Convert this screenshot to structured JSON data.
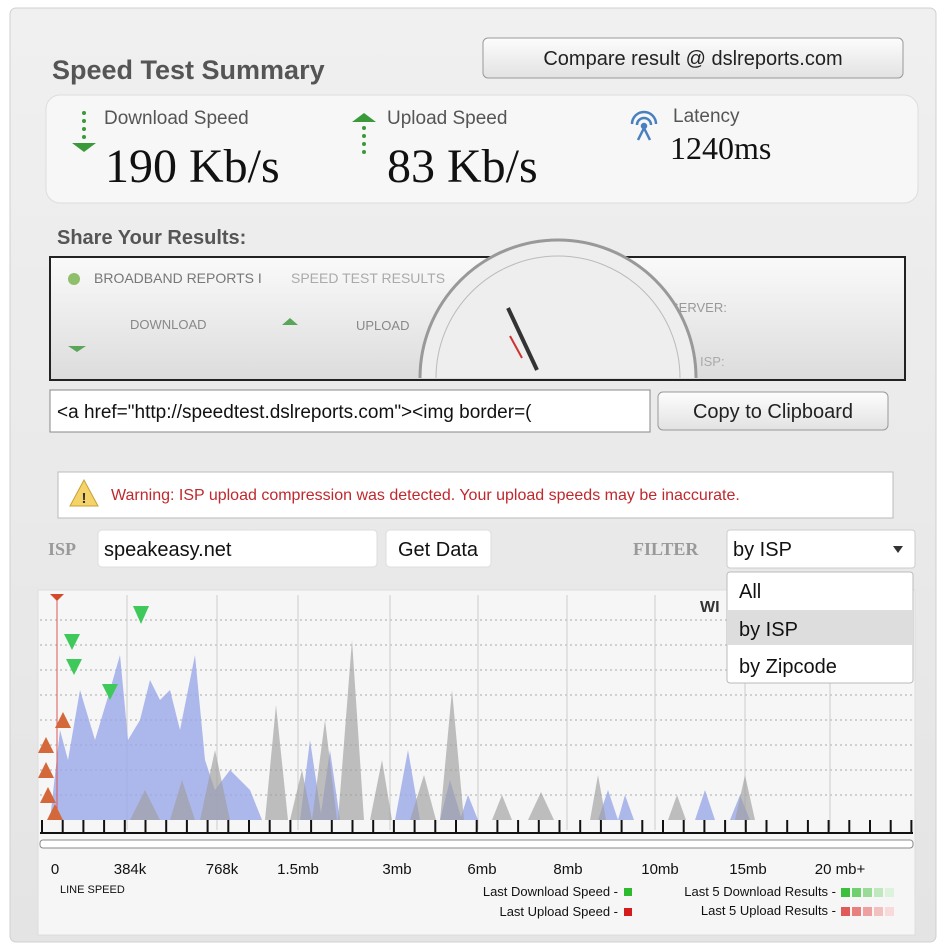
{
  "header": {
    "title": "Speed Test Summary",
    "compare_button": "Compare result @ dslreports.com"
  },
  "results": {
    "download_label": "Download Speed",
    "download_value": "190 Kb/s",
    "upload_label": "Upload Speed",
    "upload_value": "83 Kb/s",
    "latency_label": "Latency",
    "latency_value": "1240ms"
  },
  "share": {
    "title": "Share Your Results:",
    "banner_brand": "BROADBAND REPORTS I",
    "banner_subtitle": "SPEED TEST RESULTS",
    "banner_download": "DOWNLOAD",
    "banner_upload": "UPLOAD",
    "banner_server": "SERVER:",
    "banner_isp": "ISP:",
    "embed_code": "<a href=\"http://speedtest.dslreports.com\"><img border=(",
    "copy_button": "Copy to Clipboard"
  },
  "warning": "Warning: ISP upload compression was detected. Your upload speeds may be inaccurate.",
  "isp": {
    "label": "ISP",
    "value": "speakeasy.net",
    "button": "Get Data"
  },
  "filter": {
    "label": "FILTER",
    "selected": "by ISP",
    "options": [
      "All",
      "by ISP",
      "by Zipcode"
    ]
  },
  "graph": {
    "partial_label": "WI",
    "x_labels": [
      "0",
      "384k",
      "768k",
      "1.5mb",
      "3mb",
      "6mb",
      "8mb",
      "10mb",
      "15mb",
      "20 mb+"
    ],
    "x_title": "LINE SPEED",
    "legend": [
      "Last Download Speed -",
      "Last Upload Speed -",
      "Last 5 Download Results -",
      "Last 5 Upload Results -"
    ]
  }
}
